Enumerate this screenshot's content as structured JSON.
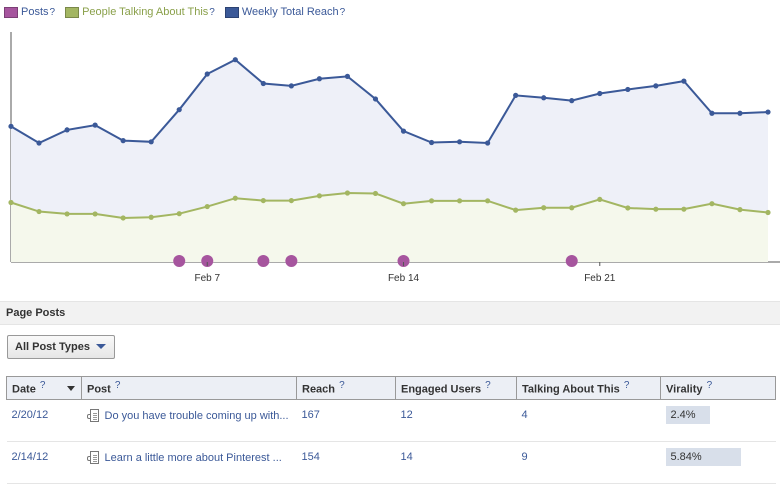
{
  "legend": [
    {
      "label": "Posts",
      "color": "#a6559e",
      "help": "?"
    },
    {
      "label": "People Talking About This",
      "color": "#a3b662",
      "help": "?"
    },
    {
      "label": "Weekly Total Reach",
      "color": "#3b5998",
      "help": "?"
    }
  ],
  "chart_data": {
    "type": "line",
    "x": [
      "Jan 31",
      "Feb 1",
      "Feb 2",
      "Feb 3",
      "Feb 4",
      "Feb 5",
      "Feb 6",
      "Feb 7",
      "Feb 8",
      "Feb 9",
      "Feb 10",
      "Feb 11",
      "Feb 12",
      "Feb 13",
      "Feb 14",
      "Feb 15",
      "Feb 16",
      "Feb 17",
      "Feb 18",
      "Feb 19",
      "Feb 20",
      "Feb 21",
      "Feb 22",
      "Feb 23",
      "Feb 24",
      "Feb 25",
      "Feb 26",
      "Feb 27"
    ],
    "x_tick_labels": [
      "Feb 7",
      "Feb 14",
      "Feb 21"
    ],
    "series": [
      {
        "name": "Weekly Total Reach",
        "color": "#3b5998",
        "values": [
          570,
          500,
          555,
          575,
          510,
          505,
          640,
          790,
          850,
          750,
          740,
          770,
          780,
          685,
          550,
          502,
          505,
          500,
          700,
          690,
          678,
          708,
          725,
          740,
          760,
          625,
          625,
          630
        ]
      },
      {
        "name": "People Talking About This",
        "color": "#a3b662",
        "values": [
          250,
          212,
          202,
          202,
          185,
          188,
          203,
          233,
          268,
          258,
          258,
          278,
          290,
          288,
          245,
          257,
          257,
          257,
          218,
          228,
          228,
          263,
          227,
          222,
          222,
          245,
          220,
          208
        ]
      },
      {
        "name": "Posts",
        "color": "#a6559e",
        "x": [
          "Feb 6",
          "Feb 7",
          "Feb 9",
          "Feb 10",
          "Feb 14",
          "Feb 20"
        ]
      }
    ],
    "ylim": [
      0,
      1000
    ],
    "grid": false,
    "legend": "top-left"
  },
  "section": {
    "title": "Page Posts"
  },
  "filter": {
    "label": "All Post Types"
  },
  "table": {
    "columns": [
      {
        "label": "Date",
        "help": "?"
      },
      {
        "label": "Post",
        "help": "?"
      },
      {
        "label": "Reach",
        "help": "?"
      },
      {
        "label": "Engaged Users",
        "help": "?"
      },
      {
        "label": "Talking About This",
        "help": "?"
      },
      {
        "label": "Virality",
        "help": "?"
      }
    ],
    "rows": [
      {
        "date": "2/20/12",
        "post": "Do you have trouble coming up with...",
        "reach": "167",
        "engaged": "12",
        "talking": "4",
        "virality": "2.4%",
        "virality_value": 2.4
      },
      {
        "date": "2/14/12",
        "post": "Learn a little more about Pinterest ...",
        "reach": "154",
        "engaged": "14",
        "talking": "9",
        "virality": "5.84%",
        "virality_value": 5.84
      }
    ]
  }
}
